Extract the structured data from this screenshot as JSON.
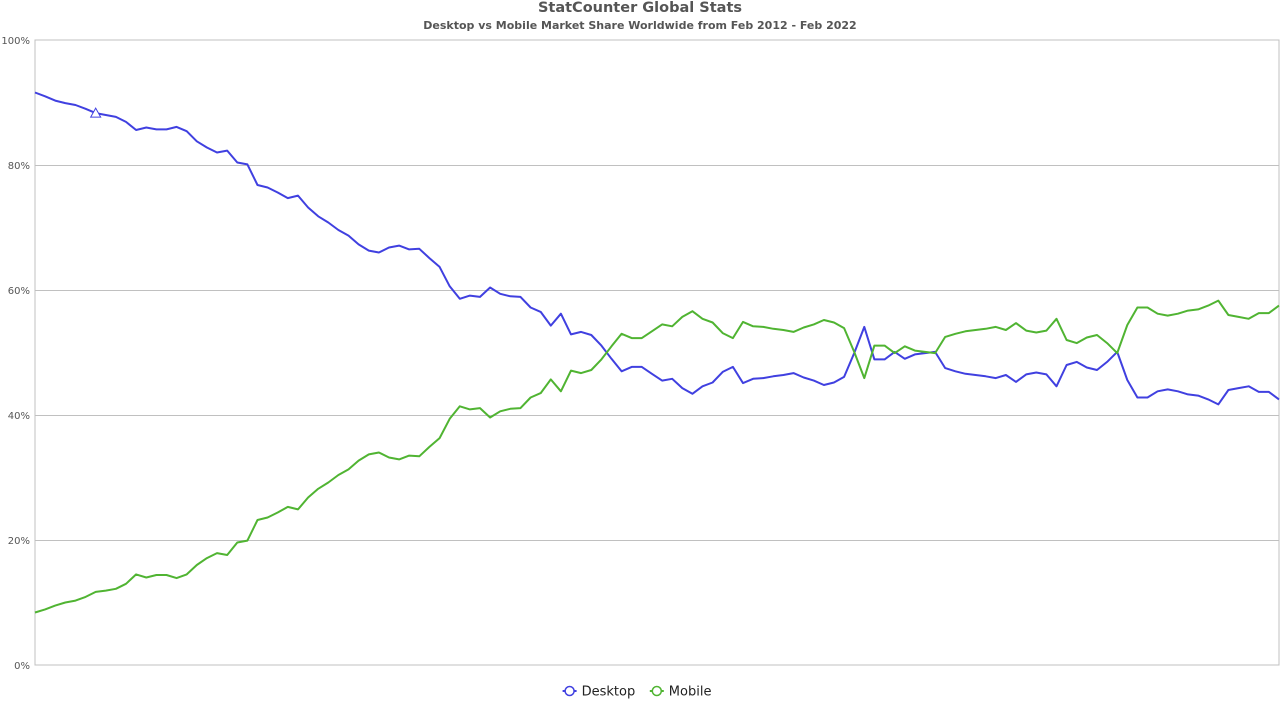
{
  "chart_data": {
    "type": "line",
    "title": "StatCounter Global Stats",
    "subtitle": "Desktop vs Mobile Market Share Worldwide from Feb 2012 - Feb 2022",
    "xlabel": "",
    "ylabel": "",
    "ylim": [
      0,
      100
    ],
    "y_ticks": [
      {
        "value": 0,
        "label": "0%"
      },
      {
        "value": 20,
        "label": "20%"
      },
      {
        "value": 40,
        "label": "40%"
      },
      {
        "value": 60,
        "label": "60%"
      },
      {
        "value": 80,
        "label": "80%"
      },
      {
        "value": 100,
        "label": "100%"
      }
    ],
    "x_range": [
      "Feb 2012",
      "Feb 2022"
    ],
    "grid": true,
    "legend_position": "bottom-center",
    "series": [
      {
        "name": "Desktop",
        "color": "#4040e0",
        "values": [
          91.6,
          91.0,
          90.3,
          89.9,
          89.6,
          89.0,
          88.3,
          88.0,
          87.7,
          86.9,
          85.6,
          86.0,
          85.7,
          85.7,
          86.1,
          85.4,
          83.8,
          82.8,
          82.0,
          82.3,
          80.4,
          80.1,
          76.8,
          76.4,
          75.6,
          74.7,
          75.1,
          73.2,
          71.8,
          70.8,
          69.6,
          68.7,
          67.3,
          66.3,
          66.0,
          66.8,
          67.1,
          66.5,
          66.6,
          65.1,
          63.7,
          60.6,
          58.6,
          59.1,
          58.9,
          60.4,
          59.4,
          59.0,
          58.9,
          57.2,
          56.5,
          54.3,
          56.2,
          52.9,
          53.3,
          52.8,
          51.1,
          49.0,
          47.0,
          47.7,
          47.7,
          46.6,
          45.5,
          45.8,
          44.3,
          43.4,
          44.6,
          45.2,
          46.9,
          47.7,
          45.1,
          45.8,
          45.9,
          46.2,
          46.4,
          46.7,
          46.0,
          45.5,
          44.8,
          45.2,
          46.1,
          49.9,
          54.1,
          48.9,
          48.9,
          50.1,
          49.0,
          49.7,
          49.9,
          50.1,
          47.5,
          47.0,
          46.6,
          46.4,
          46.2,
          45.9,
          46.4,
          45.3,
          46.5,
          46.8,
          46.5,
          44.6,
          48.0,
          48.5,
          47.6,
          47.2,
          48.5,
          50.1,
          45.6,
          42.8,
          42.8,
          43.8,
          44.1,
          43.8,
          43.3,
          43.1,
          42.5,
          41.7,
          44.0,
          44.3,
          44.6,
          43.7,
          43.7,
          42.5
        ]
      },
      {
        "name": "Mobile",
        "color": "#50b432",
        "values": [
          8.4,
          8.9,
          9.5,
          10.0,
          10.3,
          10.9,
          11.7,
          11.9,
          12.2,
          13.0,
          14.5,
          14.0,
          14.4,
          14.4,
          13.9,
          14.5,
          16.0,
          17.1,
          17.9,
          17.6,
          19.6,
          19.9,
          23.2,
          23.6,
          24.4,
          25.3,
          24.9,
          26.8,
          28.2,
          29.2,
          30.4,
          31.3,
          32.7,
          33.7,
          34.0,
          33.2,
          32.9,
          33.5,
          33.4,
          34.9,
          36.3,
          39.4,
          41.4,
          40.9,
          41.1,
          39.6,
          40.6,
          41.0,
          41.1,
          42.8,
          43.5,
          45.7,
          43.8,
          47.1,
          46.7,
          47.2,
          48.9,
          51.0,
          53.0,
          52.3,
          52.3,
          53.4,
          54.5,
          54.2,
          55.7,
          56.6,
          55.4,
          54.8,
          53.1,
          52.3,
          54.9,
          54.2,
          54.1,
          53.8,
          53.6,
          53.3,
          54.0,
          54.5,
          55.2,
          54.8,
          53.9,
          50.1,
          45.9,
          51.1,
          51.1,
          49.9,
          51.0,
          50.3,
          50.1,
          49.9,
          52.5,
          53.0,
          53.4,
          53.6,
          53.8,
          54.1,
          53.6,
          54.7,
          53.5,
          53.2,
          53.5,
          55.4,
          52.0,
          51.5,
          52.4,
          52.8,
          51.5,
          49.9,
          54.4,
          57.2,
          57.2,
          56.2,
          55.9,
          56.2,
          56.7,
          56.9,
          57.5,
          58.3,
          56.0,
          55.7,
          55.4,
          56.3,
          56.3,
          57.5
        ]
      }
    ]
  }
}
